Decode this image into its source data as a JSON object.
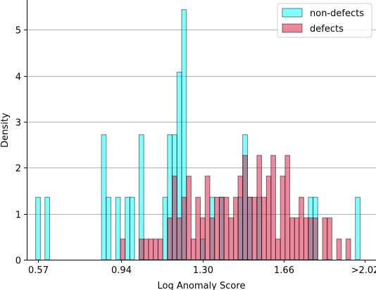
{
  "colors": {
    "non_defects": "#00ffff",
    "defects": "#dc143c",
    "grid": "#b0b0b0",
    "edge": "#000000"
  },
  "chart_data": {
    "type": "bar",
    "xlabel": "Log Anomaly Score",
    "ylabel": "Density",
    "xlim": [
      0.52,
      2.07
    ],
    "ylim": [
      0,
      5.65
    ],
    "grid": "horizontal",
    "legend_placement": "top-right",
    "x_tick_labels": [
      {
        "value": 0.57,
        "label": "0.57"
      },
      {
        "value": 0.94,
        "label": "0.94"
      },
      {
        "value": 1.3,
        "label": "1.30"
      },
      {
        "value": 1.66,
        "label": "1.66"
      },
      {
        "value": 2.02,
        "label": ">2.02"
      }
    ],
    "y_ticks": [
      0,
      1,
      2,
      3,
      4,
      5
    ],
    "bin_width": 0.0209,
    "series": [
      {
        "name": "non-defects",
        "alpha": 0.5,
        "bars": [
          [
            0.57,
            1.36
          ],
          [
            0.611,
            1.36
          ],
          [
            0.862,
            2.72
          ],
          [
            0.883,
            1.36
          ],
          [
            0.925,
            1.36
          ],
          [
            0.967,
            1.36
          ],
          [
            0.988,
            1.36
          ],
          [
            1.029,
            2.72
          ],
          [
            1.134,
            1.36
          ],
          [
            1.155,
            2.72
          ],
          [
            1.176,
            2.72
          ],
          [
            1.197,
            4.08
          ],
          [
            1.218,
            5.44
          ],
          [
            1.301,
            0.45
          ],
          [
            1.343,
            1.36
          ],
          [
            1.385,
            1.36
          ],
          [
            1.468,
            1.36
          ],
          [
            1.489,
            2.72
          ],
          [
            1.51,
            1.36
          ],
          [
            1.552,
            1.36
          ],
          [
            1.78,
            1.36
          ],
          [
            1.801,
            1.36
          ],
          [
            1.989,
            1.36
          ]
        ]
      },
      {
        "name": "defects",
        "alpha": 0.5,
        "bars": [
          [
            0.946,
            0.45
          ],
          [
            1.029,
            0.45
          ],
          [
            1.05,
            0.45
          ],
          [
            1.071,
            0.45
          ],
          [
            1.092,
            0.45
          ],
          [
            1.113,
            0.45
          ],
          [
            1.155,
            0.91
          ],
          [
            1.176,
            1.82
          ],
          [
            1.197,
            0.91
          ],
          [
            1.218,
            1.36
          ],
          [
            1.239,
            1.82
          ],
          [
            1.26,
            0.45
          ],
          [
            1.28,
            1.36
          ],
          [
            1.301,
            0.91
          ],
          [
            1.322,
            1.82
          ],
          [
            1.343,
            0.91
          ],
          [
            1.364,
            1.36
          ],
          [
            1.385,
            1.36
          ],
          [
            1.406,
            1.36
          ],
          [
            1.427,
            0.91
          ],
          [
            1.448,
            1.36
          ],
          [
            1.468,
            1.82
          ],
          [
            1.489,
            2.27
          ],
          [
            1.51,
            1.36
          ],
          [
            1.531,
            1.36
          ],
          [
            1.552,
            2.27
          ],
          [
            1.573,
            1.36
          ],
          [
            1.594,
            1.82
          ],
          [
            1.614,
            2.27
          ],
          [
            1.635,
            0.45
          ],
          [
            1.656,
            1.82
          ],
          [
            1.677,
            2.27
          ],
          [
            1.698,
            0.91
          ],
          [
            1.719,
            0.91
          ],
          [
            1.739,
            1.36
          ],
          [
            1.76,
            0.91
          ],
          [
            1.78,
            0.91
          ],
          [
            1.801,
            0.91
          ],
          [
            1.843,
            0.91
          ],
          [
            1.864,
            0.91
          ],
          [
            1.906,
            0.45
          ],
          [
            1.947,
            0.45
          ]
        ]
      }
    ]
  }
}
